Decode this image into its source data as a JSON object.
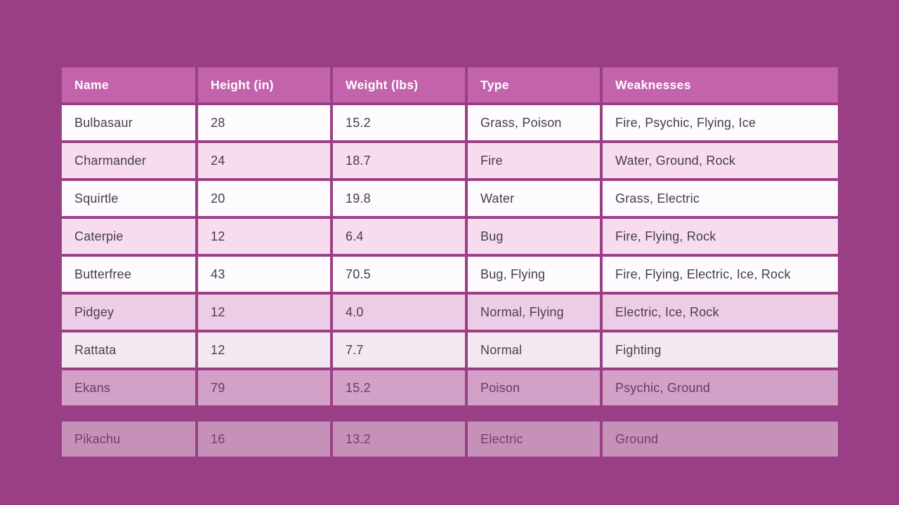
{
  "page": {
    "background_color": "#9a3f85"
  },
  "table": {
    "header_bg_color": "#c263ac",
    "header_text_color": "#ffffff",
    "row_white_color": "#fdfbfd",
    "row_pink_color": "#f7dcf0",
    "cell_text_color": "#453e4b",
    "columns": [
      {
        "key": "name",
        "label": "Name"
      },
      {
        "key": "height",
        "label": "Height (in)"
      },
      {
        "key": "weight",
        "label": "Weight (lbs)"
      },
      {
        "key": "type",
        "label": "Type"
      },
      {
        "key": "weaknesses",
        "label": "Weaknesses"
      }
    ],
    "rows": [
      {
        "name": "Bulbasaur",
        "height": "28",
        "weight": "15.2",
        "type": "Grass, Poison",
        "weaknesses": "Fire, Psychic, Flying, Ice",
        "variant": "white",
        "opacity": 1,
        "detached": false
      },
      {
        "name": "Charmander",
        "height": "24",
        "weight": "18.7",
        "type": "Fire",
        "weaknesses": "Water, Ground, Rock",
        "variant": "pink",
        "opacity": 1,
        "detached": false
      },
      {
        "name": "Squirtle",
        "height": "20",
        "weight": "19.8",
        "type": "Water",
        "weaknesses": "Grass, Electric",
        "variant": "white",
        "opacity": 1,
        "detached": false
      },
      {
        "name": "Caterpie",
        "height": "12",
        "weight": "6.4",
        "type": "Bug",
        "weaknesses": "Fire, Flying, Rock",
        "variant": "pink",
        "opacity": 1,
        "detached": false
      },
      {
        "name": "Butterfree",
        "height": "43",
        "weight": "70.5",
        "type": "Bug, Flying",
        "weaknesses": "Fire, Flying, Electric, Ice, Rock",
        "variant": "white",
        "opacity": 1,
        "detached": false
      },
      {
        "name": "Pidgey",
        "height": "12",
        "weight": "4.0",
        "type": "Normal, Flying",
        "weaknesses": "Electric, Ice, Rock",
        "variant": "pink",
        "opacity": 0.9,
        "detached": false
      },
      {
        "name": "Rattata",
        "height": "12",
        "weight": "7.7",
        "type": "Normal",
        "weaknesses": "Fighting",
        "variant": "white",
        "opacity": 0.9,
        "detached": false
      },
      {
        "name": "Ekans",
        "height": "79",
        "weight": "15.2",
        "type": "Poison",
        "weaknesses": "Psychic, Ground",
        "variant": "pink",
        "opacity": 0.62,
        "detached": false
      },
      {
        "name": "Pikachu",
        "height": "16",
        "weight": "13.2",
        "type": "Electric",
        "weaknesses": "Ground",
        "variant": "white",
        "opacity": 0.44,
        "detached": true
      }
    ]
  }
}
